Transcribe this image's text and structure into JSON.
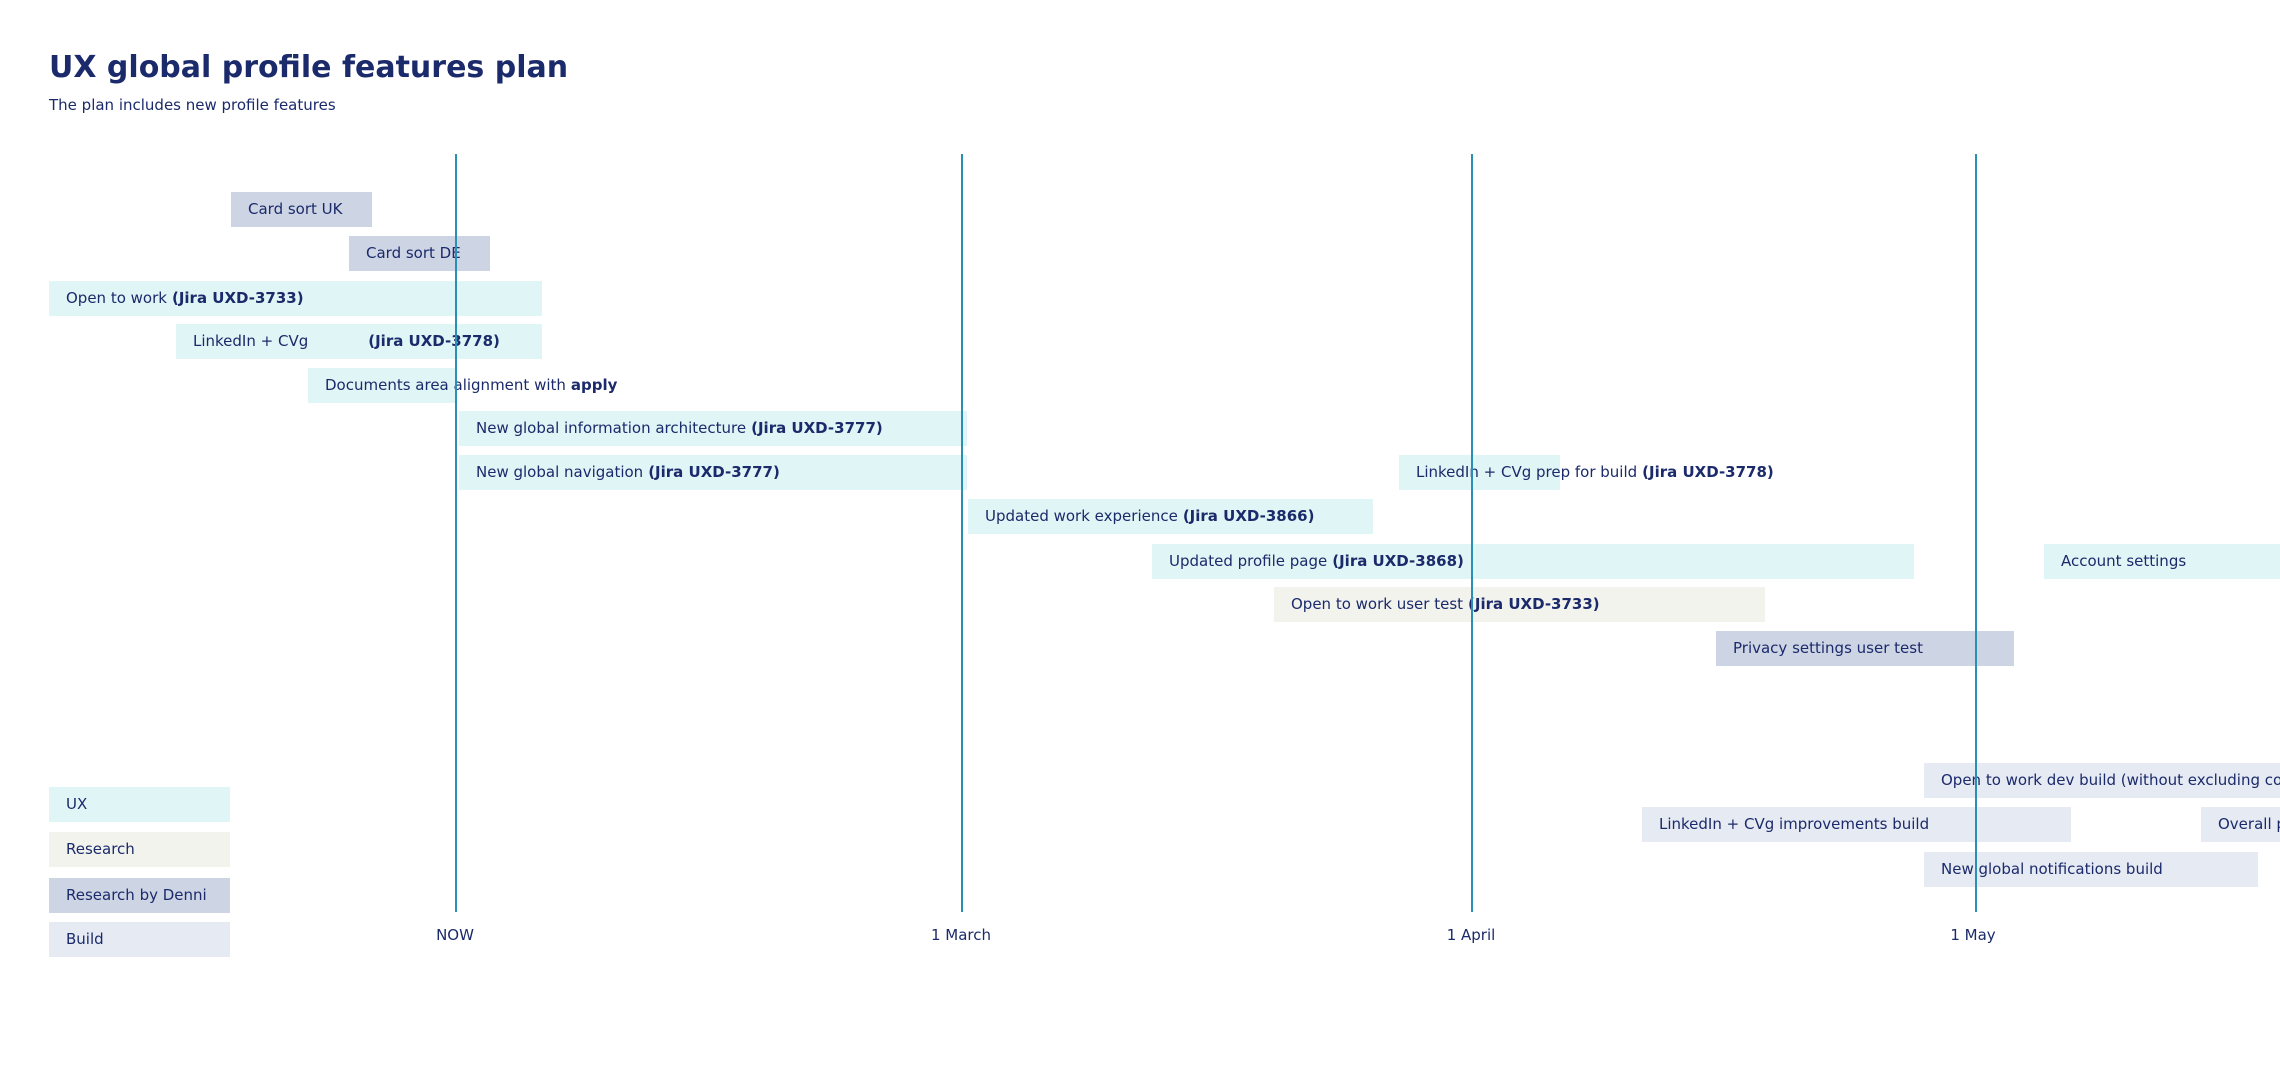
{
  "header": {
    "title": "UX global profile features plan",
    "subtitle": "The plan includes new profile features"
  },
  "milestones": [
    "NOW",
    "1 March",
    "1 April",
    "1 May"
  ],
  "tasks": [
    {
      "text": "Card sort UK"
    },
    {
      "text": "Card sort DE"
    },
    {
      "text": "Open to work",
      "bold": "(Jira UXD-3733)"
    },
    {
      "text": "LinkedIn + CVg",
      "bold": "(Jira UXD-3778)"
    },
    {
      "text": "Documents area alignment with",
      "bold": "apply"
    },
    {
      "text": "New global information architecture",
      "bold": "(Jira UXD-3777)"
    },
    {
      "text": "New global navigation",
      "bold": "(Jira UXD-3777)"
    },
    {
      "text": "LinkedIn + CVg prep for build",
      "bold": "(Jira UXD-3778)"
    },
    {
      "text": "Updated work experience",
      "bold": "(Jira UXD-3866)"
    },
    {
      "text": "Updated profile page",
      "bold": "(Jira UXD-3868)"
    },
    {
      "text": "Account settings"
    },
    {
      "text": "Open to work user test",
      "bold": "(Jira UXD-3733)"
    },
    {
      "text": "Privacy settings user test"
    },
    {
      "text": "Open to work dev build (without excluding com"
    },
    {
      "text": "LinkedIn + CVg  improvements build"
    },
    {
      "text": "Overall p"
    },
    {
      "text": "New global notifications build"
    }
  ],
  "legend": [
    "UX",
    "Research",
    "Research by Denni",
    "Build"
  ]
}
